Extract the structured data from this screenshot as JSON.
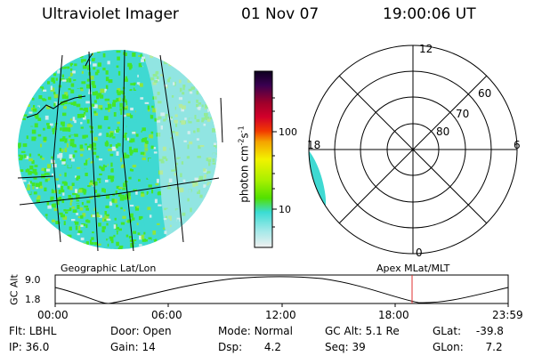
{
  "header": {
    "title": "Ultraviolet Imager",
    "date": "01 Nov 07",
    "time": "19:00:06 UT"
  },
  "colorbar": {
    "label_main": "photon cm",
    "label_exp1": "-2",
    "label_mid": "s",
    "label_exp2": "-1",
    "ticks": [
      "100",
      "10"
    ]
  },
  "polar_plot": {
    "mlt_labels": [
      "12",
      "18",
      "6",
      "0"
    ],
    "lat_labels": [
      "60",
      "70",
      "80"
    ]
  },
  "panel_labels": {
    "left": "Geographic Lat/Lon",
    "right": "Apex MLat/MLT"
  },
  "altitude_plot": {
    "axis_label": "GC Alt",
    "y_ticks": [
      "9.0",
      "1.8"
    ],
    "x_ticks": [
      "00:00",
      "06:00",
      "12:00",
      "18:00",
      "23:59"
    ],
    "current_time_marker": "19:00:06"
  },
  "status": {
    "row1": [
      {
        "label": "Flt:",
        "value": "LBHL"
      },
      {
        "label": "Door:",
        "value": "Open"
      },
      {
        "label": "Mode:",
        "value": "Normal"
      },
      {
        "label": "GC Alt:",
        "value": "5.1 Re"
      },
      {
        "label": "GLat:",
        "value": "-39.8"
      }
    ],
    "row2": [
      {
        "label": "IP:",
        "value": "36.0"
      },
      {
        "label": "Gain:",
        "value": "14"
      },
      {
        "label": "Dsp:",
        "value": "4.2"
      },
      {
        "label": "Seq:",
        "value": "39"
      },
      {
        "label": "GLon:",
        "value": "7.2"
      }
    ]
  },
  "colors": {
    "imager_base": "#3fd9d2",
    "imager_green": "#44e62a",
    "imager_pale": "#d0ecec",
    "cb_top": "#0d0020",
    "cb_mid_red": "#d2002a",
    "cb_orange": "#f5a300",
    "cb_yellow": "#f2f200",
    "cb_green": "#66e000",
    "cb_cyan": "#3adcd4",
    "cb_bottom": "#f0f0f0",
    "time_marker": "#e03030"
  }
}
